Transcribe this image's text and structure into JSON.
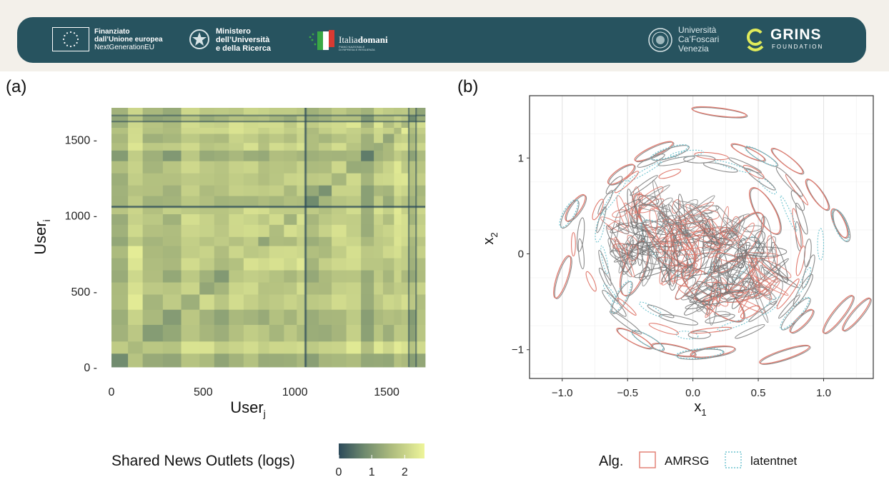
{
  "header": {
    "eu": {
      "line1": "Finanziato",
      "line2": "dall’Unione europea",
      "line3": "NextGenerationEU"
    },
    "ministero": {
      "line1": "Ministero",
      "line2": "dell’Università",
      "line3": "e della Ricerca"
    },
    "italiadomani": {
      "name_a": "Italia",
      "name_b": "domani",
      "sub1": "PIANO NAZIONALE",
      "sub2": "DI RIPRESA E RESILIENZA"
    },
    "university": {
      "line1": "Università",
      "line2": "Ca’Foscari",
      "line3": "Venezia"
    },
    "grins": {
      "name": "GRINS",
      "sub": "FOUNDATION"
    },
    "colors": {
      "band": "#27535f",
      "grins_accent": "#e0ea5a"
    }
  },
  "panels": {
    "a": "(a)",
    "b": "(b)"
  },
  "chart_data": [
    {
      "type": "heatmap",
      "panel": "(a)",
      "title": "",
      "xlabel": "User",
      "xlabel_sub": "j",
      "ylabel": "User",
      "ylabel_sub": "i",
      "xlim": [
        0,
        1710
      ],
      "ylim": [
        0,
        1710
      ],
      "xticks": [
        0,
        500,
        1000,
        1500
      ],
      "yticks": [
        0,
        500,
        1000,
        1500
      ],
      "xtick_labels": [
        "0",
        "500",
        "1000",
        "1500"
      ],
      "ytick_labels": [
        "0 -",
        "500 -",
        "1000 -",
        "1500 -"
      ],
      "n_users": 1710,
      "block_boundaries": [
        0,
        90,
        170,
        280,
        380,
        480,
        560,
        640,
        720,
        800,
        860,
        940,
        1010,
        1055,
        1130,
        1200,
        1280,
        1360,
        1430,
        1480,
        1540,
        1580,
        1620,
        1660,
        1710
      ],
      "highlight_rows_cols": [
        1055,
        1060,
        1620,
        1660
      ],
      "legend": {
        "title": "Shared News Outlets (logs)",
        "ticks": [
          0,
          1,
          2
        ],
        "tick_labels": [
          "0",
          "1",
          "2"
        ],
        "range": [
          0,
          2.6
        ],
        "colors": [
          "#2c4a5a",
          "#6f8a6e",
          "#aebc7e",
          "#eef59a"
        ]
      }
    },
    {
      "type": "scatter",
      "panel": "(b)",
      "title": "",
      "xlabel": "x",
      "xlabel_sub": "1",
      "ylabel": "x",
      "ylabel_sub": "2",
      "xlim": [
        -1.25,
        1.38
      ],
      "ylim": [
        -1.3,
        1.65
      ],
      "xticks": [
        -1.0,
        -0.5,
        0.0,
        0.5,
        1.0
      ],
      "yticks": [
        -1,
        0,
        1
      ],
      "xtick_labels": [
        "−1.0",
        "−0.5",
        "0.0",
        "0.5",
        "1.0"
      ],
      "ytick_labels": [
        "−1",
        "0",
        "1"
      ],
      "grid": true,
      "legend": {
        "title": "Alg.",
        "placement": "bottom",
        "entries": [
          {
            "name": "AMRSG",
            "color": "#e07a6e",
            "style": "solid"
          },
          {
            "name": "latentnet",
            "color": "#6ec3cf",
            "style": "dotted"
          }
        ]
      },
      "series": [
        {
          "name": "AMRSG",
          "ellipses": [
            {
              "x": 0.2,
              "y": 1.48,
              "rx": 0.21,
              "ry": 0.03,
              "angle": -7
            },
            {
              "x": -0.3,
              "y": 1.07,
              "rx": 0.16,
              "ry": 0.035,
              "angle": 25
            },
            {
              "x": 0.42,
              "y": 1.06,
              "rx": 0.14,
              "ry": 0.03,
              "angle": -25
            },
            {
              "x": 0.72,
              "y": 0.97,
              "rx": 0.15,
              "ry": 0.035,
              "angle": -38
            },
            {
              "x": -0.55,
              "y": 0.83,
              "rx": 0.12,
              "ry": 0.04,
              "angle": 35
            },
            {
              "x": 0.95,
              "y": 0.62,
              "rx": 0.14,
              "ry": 0.04,
              "angle": -55
            },
            {
              "x": -0.9,
              "y": 0.48,
              "rx": 0.12,
              "ry": 0.04,
              "angle": 55
            },
            {
              "x": 1.12,
              "y": 0.32,
              "rx": 0.12,
              "ry": 0.04,
              "angle": -65
            },
            {
              "x": -1.0,
              "y": -0.24,
              "rx": 0.17,
              "ry": 0.04,
              "angle": 72
            },
            {
              "x": 1.11,
              "y": -0.63,
              "rx": 0.18,
              "ry": 0.04,
              "angle": 52
            },
            {
              "x": 1.25,
              "y": -0.63,
              "rx": 0.16,
              "ry": 0.035,
              "angle": 50
            },
            {
              "x": 0.83,
              "y": -0.7,
              "rx": 0.12,
              "ry": 0.035,
              "angle": 45
            },
            {
              "x": 0.7,
              "y": -1.05,
              "rx": 0.2,
              "ry": 0.035,
              "angle": 18
            },
            {
              "x": -0.45,
              "y": -0.88,
              "rx": 0.15,
              "ry": 0.035,
              "angle": -28
            },
            {
              "x": -0.15,
              "y": -1.0,
              "rx": 0.17,
              "ry": 0.035,
              "angle": -12
            },
            {
              "x": 0.15,
              "y": -1.02,
              "rx": 0.17,
              "ry": 0.035,
              "angle": 8
            },
            {
              "x": -0.3,
              "y": 0.35,
              "rx": 0.24,
              "ry": 0.08,
              "angle": -55
            },
            {
              "x": -0.2,
              "y": 0.2,
              "rx": 0.3,
              "ry": 0.1,
              "angle": -48
            },
            {
              "x": 0.35,
              "y": 0.12,
              "rx": 0.28,
              "ry": 0.1,
              "angle": 52
            },
            {
              "x": 0.15,
              "y": -0.42,
              "rx": 0.3,
              "ry": 0.1,
              "angle": -40
            },
            {
              "x": 0.25,
              "y": -0.25,
              "rx": 0.28,
              "ry": 0.09,
              "angle": 35
            },
            {
              "x": -0.45,
              "y": -0.15,
              "rx": 0.22,
              "ry": 0.08,
              "angle": 70
            },
            {
              "x": 0.55,
              "y": 0.45,
              "rx": 0.2,
              "ry": 0.07,
              "angle": -60
            }
          ]
        },
        {
          "name": "latentnet",
          "ellipses": [
            {
              "x": -0.18,
              "y": 1.06,
              "rx": 0.15,
              "ry": 0.035,
              "angle": 18
            },
            {
              "x": 0.52,
              "y": 1.02,
              "rx": 0.14,
              "ry": 0.03,
              "angle": -30
            },
            {
              "x": 1.13,
              "y": 0.3,
              "rx": 0.13,
              "ry": 0.045,
              "angle": -68
            },
            {
              "x": -0.95,
              "y": 0.42,
              "rx": 0.12,
              "ry": 0.04,
              "angle": 60
            },
            {
              "x": 0.78,
              "y": -0.62,
              "rx": 0.16,
              "ry": 0.04,
              "angle": 48
            },
            {
              "x": -0.35,
              "y": -0.9,
              "rx": 0.14,
              "ry": 0.035,
              "angle": -30
            },
            {
              "x": -0.55,
              "y": -0.45,
              "rx": 0.14,
              "ry": 0.04,
              "angle": 60
            },
            {
              "x": 0.05,
              "y": -1.04,
              "rx": 0.18,
              "ry": 0.035,
              "angle": 5
            },
            {
              "x": -0.2,
              "y": 0.05,
              "rx": 0.28,
              "ry": 0.1,
              "angle": -50
            },
            {
              "x": 0.3,
              "y": -0.1,
              "rx": 0.27,
              "ry": 0.1,
              "angle": 45
            }
          ]
        }
      ]
    }
  ]
}
